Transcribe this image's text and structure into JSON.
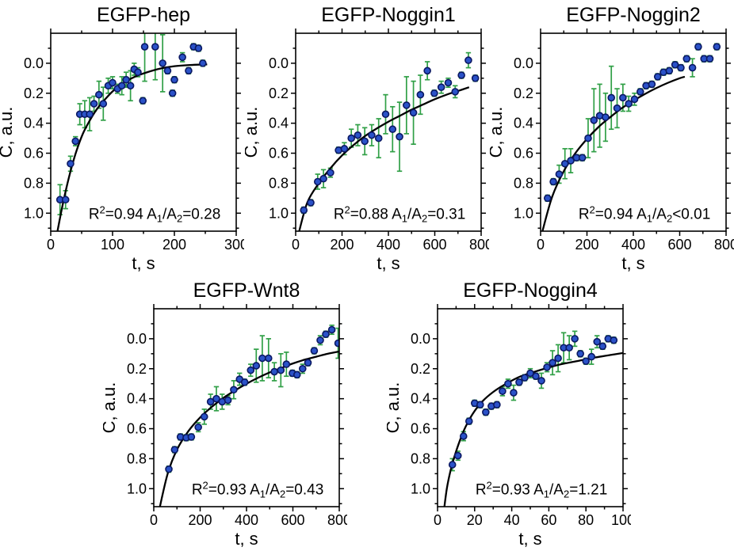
{
  "figure": {
    "description": "FRAP fluorescence recovery curves for five EGFP fusion proteins",
    "background": "#ffffff",
    "colors": {
      "point_fill": "#2a52c8",
      "point_edge": "#0b1862",
      "error_bar": "#31a047",
      "curve": "#000000",
      "frame": "#000000",
      "text": "#000000"
    }
  },
  "chart_data": [
    {
      "type": "scatter",
      "title": "EGFP-hep",
      "xlabel": "t, s",
      "ylabel": "C, a.u.",
      "xlim": [
        0,
        300
      ],
      "xticks": [
        0,
        100,
        200,
        300
      ],
      "x_minor": [
        50,
        150,
        250
      ],
      "ylim_display": [
        -0.2,
        1.12
      ],
      "y_inverted": true,
      "yticks": [
        0.0,
        0.2,
        0.4,
        0.6,
        0.8,
        1.0
      ],
      "ytick_labels": [
        "0.0",
        "0.2",
        "0.4",
        "0.6",
        "0.8",
        "1.0"
      ],
      "y_minor": [
        -0.1,
        0.1,
        0.3,
        0.5,
        0.7,
        0.9,
        1.1
      ],
      "annotation": {
        "text": "R²=0.94 A₁/A₂=0.28",
        "r2": "0.94",
        "op": "=",
        "ratio": "0.28"
      },
      "points": [
        [
          15,
          0.91,
          0.1
        ],
        [
          24,
          0.91,
          0.06
        ],
        [
          32,
          0.67,
          0.05
        ],
        [
          40,
          0.52,
          0.03
        ],
        [
          47,
          0.34,
          0.07
        ],
        [
          55,
          0.34,
          0.09
        ],
        [
          63,
          0.34,
          0.11
        ],
        [
          70,
          0.27,
          0.05
        ],
        [
          78,
          0.21,
          0.09
        ],
        [
          85,
          0.27,
          0.11
        ],
        [
          93,
          0.15,
          0.05
        ],
        [
          100,
          0.13,
          0.04
        ],
        [
          108,
          0.17,
          0.03
        ],
        [
          115,
          0.15,
          0.06
        ],
        [
          122,
          0.11,
          0.05
        ],
        [
          129,
          0.15,
          0.1
        ],
        [
          135,
          0.04,
          0.04
        ],
        [
          141,
          0.06,
          0.03
        ],
        [
          149,
          0.25,
          0.02
        ],
        [
          152,
          -0.11,
          0.23
        ],
        [
          169,
          -0.11,
          0.22
        ],
        [
          181,
          0.0,
          0.19
        ],
        [
          189,
          0.05,
          0.02
        ],
        [
          197,
          0.2,
          0.02
        ],
        [
          200,
          0.11,
          0.02
        ],
        [
          213,
          -0.04,
          0.03
        ],
        [
          223,
          0.05,
          0.02
        ],
        [
          231,
          -0.11,
          0.02
        ],
        [
          239,
          -0.1,
          0.02
        ],
        [
          246,
          0.0,
          0.02
        ]
      ],
      "curve": [
        [
          10,
          1.14
        ],
        [
          18,
          0.97
        ],
        [
          26,
          0.82
        ],
        [
          34,
          0.69
        ],
        [
          42,
          0.58
        ],
        [
          52,
          0.47
        ],
        [
          62,
          0.39
        ],
        [
          74,
          0.31
        ],
        [
          88,
          0.24
        ],
        [
          102,
          0.18
        ],
        [
          118,
          0.13
        ],
        [
          136,
          0.09
        ],
        [
          156,
          0.06
        ],
        [
          178,
          0.035
        ],
        [
          200,
          0.02
        ],
        [
          225,
          0.012
        ],
        [
          253,
          0.008
        ]
      ]
    },
    {
      "type": "scatter",
      "title": "EGFP-Noggin1",
      "xlabel": "t, s",
      "ylabel": "C, a.u.",
      "xlim": [
        0,
        800
      ],
      "xticks": [
        0,
        200,
        400,
        600,
        800
      ],
      "x_minor": [
        100,
        300,
        500,
        700
      ],
      "ylim_display": [
        -0.2,
        1.12
      ],
      "y_inverted": true,
      "yticks": [
        0.0,
        0.2,
        0.4,
        0.6,
        0.8,
        1.0
      ],
      "ytick_labels": [
        "0.0",
        "0.2",
        "0.4",
        "0.6",
        "0.8",
        "1.0"
      ],
      "y_minor": [
        -0.1,
        0.1,
        0.3,
        0.5,
        0.7,
        0.9,
        1.1
      ],
      "annotation": {
        "text": "R²=0.88 A₁/A₂=0.31",
        "r2": "0.88",
        "op": "=",
        "ratio": "0.31"
      },
      "points": [
        [
          35,
          0.98,
          0.02
        ],
        [
          65,
          0.93,
          0.02
        ],
        [
          95,
          0.79,
          0.05
        ],
        [
          120,
          0.77,
          0.06
        ],
        [
          150,
          0.73,
          0.03
        ],
        [
          185,
          0.58,
          0.02
        ],
        [
          210,
          0.57,
          0.04
        ],
        [
          240,
          0.5,
          0.06
        ],
        [
          268,
          0.48,
          0.07
        ],
        [
          298,
          0.52,
          0.09
        ],
        [
          328,
          0.48,
          0.07
        ],
        [
          358,
          0.5,
          0.13
        ],
        [
          388,
          0.34,
          0.13
        ],
        [
          418,
          0.44,
          0.15
        ],
        [
          448,
          0.49,
          0.23
        ],
        [
          478,
          0.28,
          0.19
        ],
        [
          508,
          0.33,
          0.21
        ],
        [
          538,
          0.21,
          0.13
        ],
        [
          568,
          0.05,
          0.06
        ],
        [
          598,
          0.2,
          0.02
        ],
        [
          628,
          0.16,
          0.04
        ],
        [
          658,
          0.13,
          0.03
        ],
        [
          688,
          0.19,
          0.04
        ],
        [
          715,
          0.08,
          0.02
        ],
        [
          745,
          -0.02,
          0.05
        ],
        [
          775,
          0.1,
          0.02
        ]
      ],
      "curve": [
        [
          12,
          1.14
        ],
        [
          50,
          0.93
        ],
        [
          100,
          0.8
        ],
        [
          150,
          0.7
        ],
        [
          200,
          0.615
        ],
        [
          250,
          0.545
        ],
        [
          300,
          0.485
        ],
        [
          350,
          0.435
        ],
        [
          400,
          0.39
        ],
        [
          450,
          0.35
        ],
        [
          500,
          0.31
        ],
        [
          550,
          0.275
        ],
        [
          600,
          0.24
        ],
        [
          650,
          0.21
        ],
        [
          700,
          0.185
        ],
        [
          748,
          0.16
        ]
      ]
    },
    {
      "type": "scatter",
      "title": "EGFP-Noggin2",
      "xlabel": "t, s",
      "ylabel": "C, a.u.",
      "xlim": [
        0,
        800
      ],
      "xticks": [
        0,
        200,
        400,
        600,
        800
      ],
      "x_minor": [
        100,
        300,
        500,
        700
      ],
      "ylim_display": [
        -0.2,
        1.12
      ],
      "y_inverted": true,
      "yticks": [
        0.0,
        0.2,
        0.4,
        0.6,
        0.8,
        1.0
      ],
      "ytick_labels": [
        "0.0",
        "0.2",
        "0.4",
        "0.6",
        "0.8",
        "1.0"
      ],
      "y_minor": [
        -0.1,
        0.1,
        0.3,
        0.5,
        0.7,
        0.9,
        1.1
      ],
      "annotation": {
        "text": "R²=0.94 A₁/A₂<0.01",
        "r2": "0.94",
        "op": "<",
        "ratio": "0.01"
      },
      "points": [
        [
          30,
          0.9,
          0.02
        ],
        [
          55,
          0.79,
          0.02
        ],
        [
          80,
          0.74,
          0.06
        ],
        [
          105,
          0.67,
          0.1
        ],
        [
          130,
          0.65,
          0.08
        ],
        [
          155,
          0.63,
          0.02
        ],
        [
          180,
          0.63,
          0.02
        ],
        [
          205,
          0.5,
          0.13
        ],
        [
          230,
          0.38,
          0.21
        ],
        [
          255,
          0.35,
          0.21
        ],
        [
          280,
          0.36,
          0.16
        ],
        [
          305,
          0.23,
          0.21
        ],
        [
          330,
          0.3,
          0.13
        ],
        [
          355,
          0.23,
          0.09
        ],
        [
          380,
          0.27,
          0.05
        ],
        [
          405,
          0.24,
          0.04
        ],
        [
          430,
          0.19,
          0.02
        ],
        [
          455,
          0.15,
          0.02
        ],
        [
          480,
          0.14,
          0.02
        ],
        [
          505,
          0.09,
          0.02
        ],
        [
          530,
          0.06,
          0.02
        ],
        [
          555,
          0.05,
          0.02
        ],
        [
          580,
          0.01,
          0.02
        ],
        [
          605,
          0.03,
          0.02
        ],
        [
          630,
          -0.03,
          0.02
        ],
        [
          655,
          0.03,
          0.06
        ],
        [
          680,
          -0.11,
          0.02
        ],
        [
          705,
          -0.03,
          0.02
        ],
        [
          730,
          -0.03,
          0.02
        ],
        [
          760,
          -0.11,
          0.02
        ]
      ],
      "curve": [
        [
          8,
          1.12
        ],
        [
          50,
          0.89
        ],
        [
          100,
          0.72
        ],
        [
          150,
          0.6
        ],
        [
          200,
          0.505
        ],
        [
          250,
          0.425
        ],
        [
          300,
          0.36
        ],
        [
          350,
          0.3
        ],
        [
          400,
          0.25
        ],
        [
          450,
          0.205
        ],
        [
          500,
          0.165
        ],
        [
          550,
          0.13
        ],
        [
          600,
          0.1
        ],
        [
          622,
          0.09
        ]
      ]
    },
    {
      "type": "scatter",
      "title": "EGFP-Wnt8",
      "xlabel": "t, s",
      "ylabel": "C, a.u.",
      "xlim": [
        0,
        800
      ],
      "xticks": [
        0,
        200,
        400,
        600,
        800
      ],
      "x_minor": [
        100,
        300,
        500,
        700
      ],
      "ylim_display": [
        -0.2,
        1.12
      ],
      "y_inverted": true,
      "yticks": [
        0.0,
        0.2,
        0.4,
        0.6,
        0.8,
        1.0
      ],
      "ytick_labels": [
        "0.0",
        "0.2",
        "0.4",
        "0.6",
        "0.8",
        "1.0"
      ],
      "y_minor": [
        -0.1,
        0.1,
        0.3,
        0.5,
        0.7,
        0.9,
        1.1
      ],
      "annotation": {
        "text": "R²=0.93 A₁/A₂=0.43",
        "r2": "0.93",
        "op": "=",
        "ratio": "0.43"
      },
      "points": [
        [
          65,
          0.87,
          0.02
        ],
        [
          90,
          0.74,
          0.02
        ],
        [
          115,
          0.655,
          0.02
        ],
        [
          140,
          0.66,
          0.02
        ],
        [
          162,
          0.655,
          0.02
        ],
        [
          192,
          0.59,
          0.03
        ],
        [
          218,
          0.52,
          0.05
        ],
        [
          245,
          0.42,
          0.05
        ],
        [
          270,
          0.4,
          0.08
        ],
        [
          295,
          0.42,
          0.05
        ],
        [
          320,
          0.41,
          0.03
        ],
        [
          345,
          0.34,
          0.06
        ],
        [
          370,
          0.27,
          0.04
        ],
        [
          392,
          0.29,
          0.02
        ],
        [
          418,
          0.21,
          0.04
        ],
        [
          442,
          0.18,
          0.11
        ],
        [
          468,
          0.13,
          0.15
        ],
        [
          495,
          0.13,
          0.13
        ],
        [
          520,
          0.22,
          0.06
        ],
        [
          548,
          0.21,
          0.11
        ],
        [
          572,
          0.17,
          0.08
        ],
        [
          598,
          0.23,
          0.02
        ],
        [
          618,
          0.24,
          0.02
        ],
        [
          642,
          0.2,
          0.03
        ],
        [
          665,
          0.16,
          0.02
        ],
        [
          692,
          0.08,
          0.02
        ],
        [
          718,
          0.01,
          0.03
        ],
        [
          742,
          -0.03,
          0.02
        ],
        [
          768,
          -0.06,
          0.03
        ],
        [
          795,
          0.03,
          0.1
        ]
      ],
      "curve": [
        [
          25,
          1.13
        ],
        [
          60,
          0.9
        ],
        [
          100,
          0.74
        ],
        [
          150,
          0.615
        ],
        [
          200,
          0.525
        ],
        [
          250,
          0.455
        ],
        [
          300,
          0.395
        ],
        [
          350,
          0.345
        ],
        [
          400,
          0.3
        ],
        [
          450,
          0.26
        ],
        [
          500,
          0.225
        ],
        [
          550,
          0.195
        ],
        [
          600,
          0.165
        ],
        [
          650,
          0.14
        ],
        [
          700,
          0.12
        ],
        [
          750,
          0.1
        ],
        [
          800,
          0.085
        ]
      ]
    },
    {
      "type": "scatter",
      "title": "EGFP-Noggin4",
      "xlabel": "t, s",
      "ylabel": "C, a.u.",
      "xlim": [
        0,
        100
      ],
      "xticks": [
        0,
        20,
        40,
        60,
        80,
        100
      ],
      "x_minor": [
        10,
        30,
        50,
        70,
        90
      ],
      "ylim_display": [
        -0.2,
        1.12
      ],
      "y_inverted": true,
      "yticks": [
        0.0,
        0.2,
        0.4,
        0.6,
        0.8,
        1.0
      ],
      "ytick_labels": [
        "0.0",
        "0.2",
        "0.4",
        "0.6",
        "0.8",
        "1.0"
      ],
      "y_minor": [
        -0.1,
        0.1,
        0.3,
        0.5,
        0.7,
        0.9,
        1.1
      ],
      "annotation": {
        "text": "R²=0.93 A₁/A₂=1.21",
        "r2": "0.93",
        "op": "=",
        "ratio": "1.21"
      },
      "points": [
        [
          8,
          0.84,
          0.04
        ],
        [
          11,
          0.78,
          0.03
        ],
        [
          14,
          0.65,
          0.03
        ],
        [
          17,
          0.55,
          0.02
        ],
        [
          20,
          0.43,
          0.02
        ],
        [
          23,
          0.44,
          0.02
        ],
        [
          26,
          0.49,
          0.02
        ],
        [
          29,
          0.45,
          0.02
        ],
        [
          32,
          0.44,
          0.02
        ],
        [
          35,
          0.35,
          0.03
        ],
        [
          38,
          0.3,
          0.03
        ],
        [
          41,
          0.36,
          0.05
        ],
        [
          44,
          0.29,
          0.02
        ],
        [
          47,
          0.26,
          0.02
        ],
        [
          50,
          0.23,
          0.03
        ],
        [
          53,
          0.25,
          0.02
        ],
        [
          56,
          0.28,
          0.05
        ],
        [
          59,
          0.19,
          0.03
        ],
        [
          62,
          0.16,
          0.08
        ],
        [
          65,
          0.13,
          0.09
        ],
        [
          68,
          0.06,
          0.1
        ],
        [
          71,
          0.06,
          0.08
        ],
        [
          74,
          0.0,
          0.05
        ],
        [
          77,
          0.1,
          0.02
        ],
        [
          80,
          0.15,
          0.02
        ],
        [
          83,
          0.12,
          0.05
        ],
        [
          86,
          0.02,
          0.04
        ],
        [
          89,
          0.05,
          0.02
        ],
        [
          92,
          0.0,
          0.02
        ],
        [
          95,
          0.01,
          0.02
        ]
      ],
      "curve": [
        [
          3.5,
          1.14
        ],
        [
          5,
          1.0
        ],
        [
          7,
          0.88
        ],
        [
          9,
          0.79
        ],
        [
          12,
          0.68
        ],
        [
          15,
          0.59
        ],
        [
          19,
          0.5
        ],
        [
          24,
          0.42
        ],
        [
          30,
          0.355
        ],
        [
          37,
          0.3
        ],
        [
          45,
          0.25
        ],
        [
          55,
          0.21
        ],
        [
          65,
          0.175
        ],
        [
          75,
          0.15
        ],
        [
          85,
          0.125
        ],
        [
          95,
          0.105
        ],
        [
          100,
          0.095
        ]
      ]
    }
  ]
}
